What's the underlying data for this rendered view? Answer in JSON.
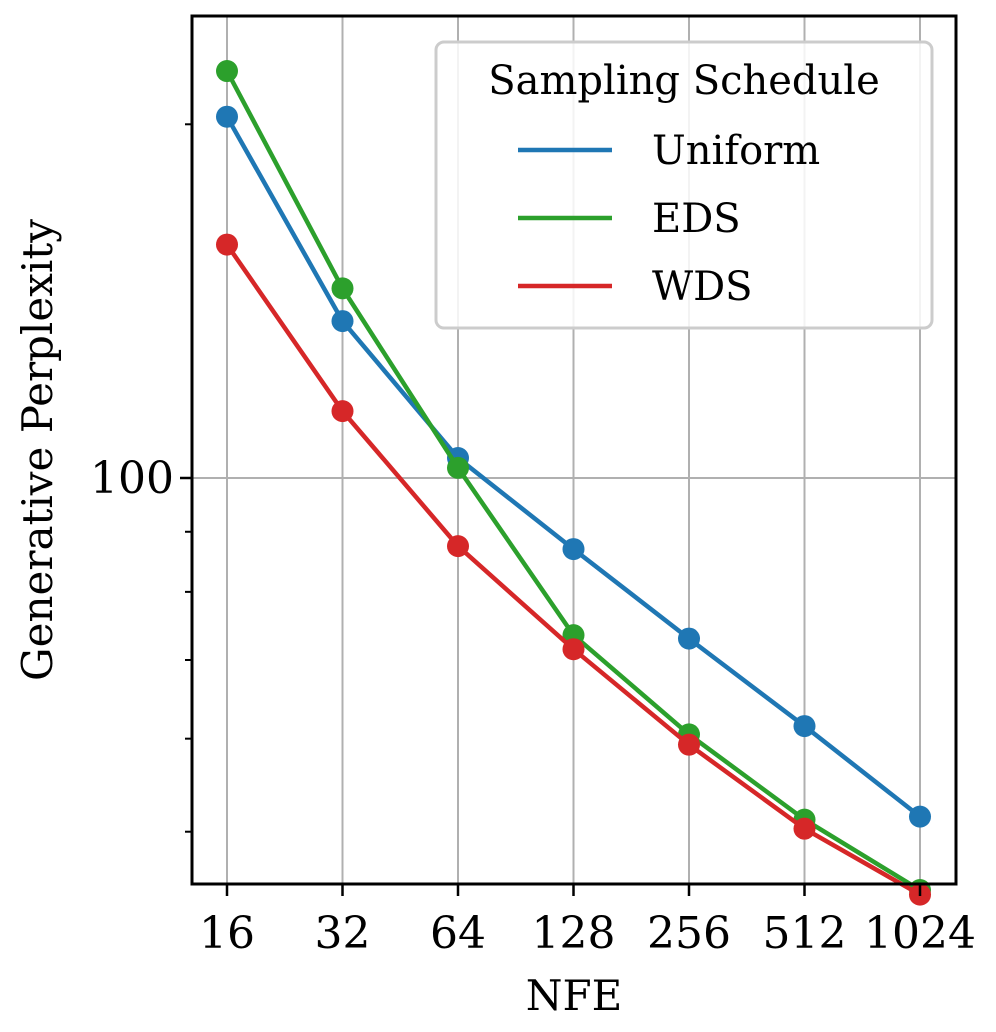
{
  "chart_data": {
    "type": "line",
    "x": [
      16,
      32,
      64,
      128,
      256,
      512,
      1024
    ],
    "x_scale": "log2",
    "y_scale": "log10",
    "xlabel": "NFE",
    "ylabel": "Generative Perplexity",
    "y_tick_labels": [
      "100"
    ],
    "ylim": [
      45,
      236
    ],
    "grid": true,
    "legend": {
      "title": "Sampling Schedule",
      "placement": "top-right"
    },
    "series": [
      {
        "name": "Uniform",
        "color": "#1f77b4",
        "values": [
          203,
          136,
          104,
          87,
          73,
          61.5,
          51.5
        ]
      },
      {
        "name": "EDS",
        "color": "#2ca02c",
        "values": [
          222,
          145,
          102,
          73.5,
          60.5,
          51.2,
          44.6
        ]
      },
      {
        "name": "WDS",
        "color": "#d62728",
        "values": [
          158,
          114,
          87.5,
          71.5,
          59.3,
          50.3,
          44.2
        ]
      }
    ]
  }
}
